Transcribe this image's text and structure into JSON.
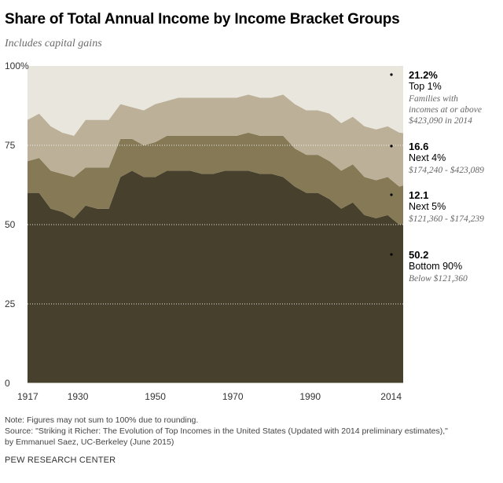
{
  "header": {
    "title": "Share of Total Annual Income by Income Bracket Groups",
    "subtitle": "Includes capital gains"
  },
  "colors": {
    "top1": "#e9e6de",
    "next4": "#bcb198",
    "next5": "#867a56",
    "bottom90": "#47402c",
    "grid": "#ffffff"
  },
  "chart_data": {
    "type": "area",
    "stacked": true,
    "title": "Share of Total Annual Income by Income Bracket Groups",
    "subtitle": "Includes capital gains",
    "xlim": [
      1917,
      2014
    ],
    "ylim": [
      0,
      100
    ],
    "x_ticks": [
      "1917",
      "1930",
      "1950",
      "1970",
      "1990",
      "2014"
    ],
    "y_ticks": [
      "0",
      "25",
      "50",
      "75",
      "100%"
    ],
    "x": [
      1917,
      1920,
      1923,
      1926,
      1929,
      1932,
      1935,
      1938,
      1941,
      1944,
      1947,
      1950,
      1953,
      1956,
      1959,
      1962,
      1965,
      1968,
      1971,
      1974,
      1977,
      1980,
      1983,
      1986,
      1989,
      1992,
      1995,
      1998,
      2001,
      2004,
      2007,
      2010,
      2013,
      2014
    ],
    "series": [
      {
        "name": "Bottom 90%",
        "key": "bottom90",
        "values": [
          60,
          60,
          55,
          54,
          52,
          56,
          55,
          55,
          65,
          67,
          65,
          65,
          67,
          67,
          67,
          66,
          66,
          67,
          67,
          67,
          66,
          66,
          65,
          62,
          60,
          60,
          58,
          55,
          57,
          53,
          52,
          53,
          50,
          50.2
        ]
      },
      {
        "name": "Next 5%",
        "key": "next5",
        "values": [
          10,
          11,
          12,
          12,
          13,
          12,
          13,
          13,
          12,
          10,
          10,
          11,
          11,
          11,
          11,
          12,
          12,
          11,
          11,
          12,
          12,
          12,
          13,
          12,
          12,
          12,
          12,
          12,
          12,
          12,
          12,
          12,
          12,
          12.1
        ]
      },
      {
        "name": "Next 4%",
        "key": "next4",
        "values": [
          13,
          14,
          14,
          13,
          13,
          15,
          15,
          15,
          11,
          10,
          11,
          12,
          11,
          12,
          12,
          12,
          12,
          12,
          12,
          12,
          12,
          12,
          13,
          14,
          14,
          14,
          15,
          15,
          15,
          16,
          16,
          16,
          17,
          16.6
        ]
      },
      {
        "name": "Top 1%",
        "key": "top1",
        "values": [
          17,
          15,
          19,
          21,
          22,
          17,
          17,
          17,
          12,
          13,
          14,
          12,
          11,
          10,
          10,
          10,
          10,
          10,
          10,
          9,
          10,
          10,
          9,
          12,
          14,
          14,
          15,
          18,
          16,
          19,
          20,
          19,
          21,
          21.2
        ]
      }
    ],
    "grid": true,
    "legend": "right"
  },
  "annotations": [
    {
      "key": "top1",
      "value": "21.2%",
      "name": "Top 1%",
      "desc": [
        "Families with",
        "incomes at or above",
        "$423,090 in 2014"
      ]
    },
    {
      "key": "next4",
      "value": "16.6",
      "name": "Next 4%",
      "desc": [
        "$174,240 - $423,089"
      ]
    },
    {
      "key": "next5",
      "value": "12.1",
      "name": "Next 5%",
      "desc": [
        "$121,360 - $174,239"
      ]
    },
    {
      "key": "bottom90",
      "value": "50.2",
      "name": "Bottom 90%",
      "desc": [
        "Below $121,360"
      ]
    }
  ],
  "footer": {
    "note": "Note: Figures may not sum to 100% due to rounding.",
    "source_line1": "Source: \"Striking it Richer: The Evolution of Top Incomes in the United States (Updated with 2014 preliminary estimates),\"",
    "source_line2": "by Emmanuel Saez, UC-Berkeley (June 2015)",
    "brand": "PEW RESEARCH CENTER"
  }
}
